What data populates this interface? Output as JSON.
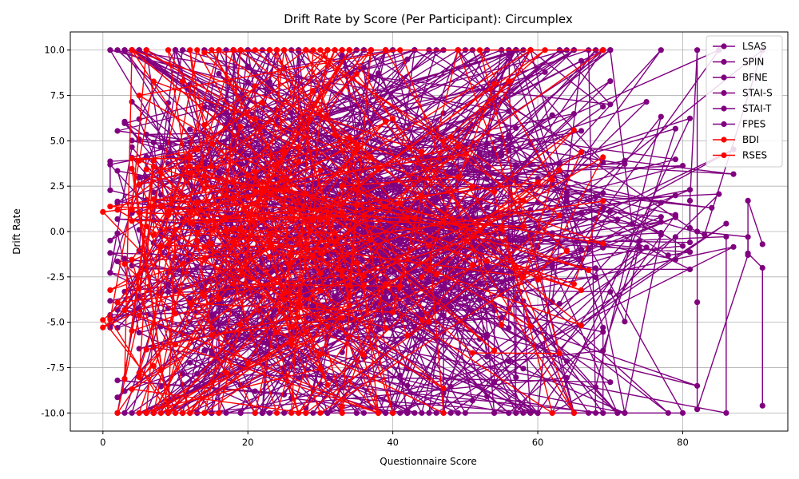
{
  "chart_data": {
    "type": "line",
    "title": "Drift Rate by Score (Per Participant): Circumplex",
    "xlabel": "Questionnaire Score",
    "ylabel": "Drift Rate",
    "xlim": [
      -4.5,
      94.5
    ],
    "ylim": [
      -11,
      11
    ],
    "xticks": [
      0,
      20,
      40,
      60,
      80
    ],
    "yticks": [
      -10.0,
      -7.5,
      -5.0,
      -2.5,
      0.0,
      2.5,
      5.0,
      7.5,
      10.0
    ],
    "grid": true,
    "legend_position": "top-right",
    "series": [
      {
        "name": "LSAS",
        "color": "#800080",
        "x_range": [
          0,
          70
        ],
        "points": 120,
        "seed": 11
      },
      {
        "name": "SPIN",
        "color": "#800080",
        "x_range": [
          0,
          70
        ],
        "points": 120,
        "seed": 23
      },
      {
        "name": "BFNE",
        "color": "#800080",
        "x_range": [
          0,
          60
        ],
        "points": 110,
        "seed": 37
      },
      {
        "name": "STAI-S",
        "color": "#800080",
        "x_range": [
          0,
          82
        ],
        "points": 130,
        "seed": 41
      },
      {
        "name": "STAI-T",
        "color": "#800080",
        "x_range": [
          0,
          91
        ],
        "points": 130,
        "seed": 53
      },
      {
        "name": "FPES",
        "color": "#800080",
        "x_range": [
          0,
          60
        ],
        "points": 110,
        "seed": 67
      },
      {
        "name": "BDI",
        "color": "#ff0000",
        "x_range": [
          0,
          70
        ],
        "points": 140,
        "seed": 71
      },
      {
        "name": "RSES",
        "color": "#ff0000",
        "x_range": [
          0,
          40
        ],
        "points": 140,
        "seed": 89
      }
    ],
    "tail_points": [
      {
        "series": "STAI-S",
        "x": [
          81,
          81,
          82,
          82,
          82,
          89,
          89,
          91
        ],
        "y": [
          -0.6,
          1.7,
          10.0,
          -3.9,
          -9.8,
          -1.3,
          1.7,
          -0.7
        ]
      },
      {
        "series": "STAI-T",
        "x": [
          81,
          82,
          89,
          89,
          91,
          91
        ],
        "y": [
          0.2,
          0.0,
          -0.3,
          -1.2,
          -2.0,
          -9.6
        ]
      }
    ]
  }
}
